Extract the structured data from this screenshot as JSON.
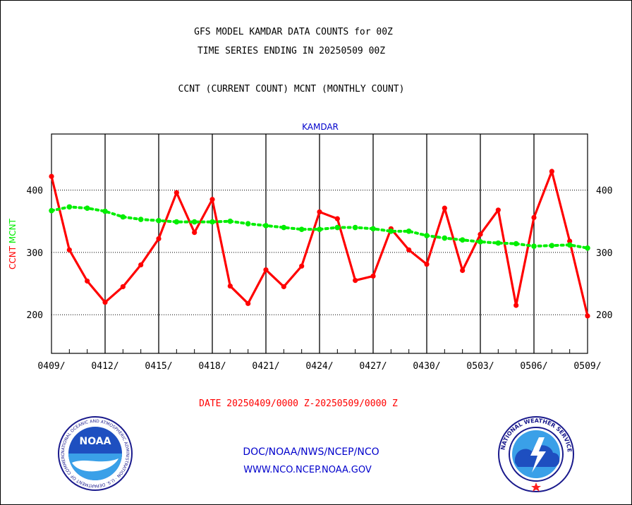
{
  "header": {
    "title_line1": "GFS MODEL KAMDAR DATA COUNTS for 00Z",
    "title_line2": "TIME SERIES ENDING IN 20250509 00Z",
    "subtitle": "CCNT (CURRENT COUNT) MCNT (MONTHLY COUNT)"
  },
  "footer": {
    "date_range": "DATE 20250409/0000 Z-20250509/0000 Z",
    "org_path": "DOC/NOAA/NWS/NCEP/NCO",
    "website": "WWW.NCO.NCEP.NOAA.GOV"
  },
  "logos": {
    "noaa_label": "NOAA",
    "noaa_ring_text": "NATIONAL OCEANIC AND ATMOSPHERIC ADMINISTRATION · U.S. DEPARTMENT OF COMMERCE ·",
    "nws_ring_text": "NATIONAL WEATHER SERVICE"
  },
  "colors": {
    "ccnt": "#ff0000",
    "mcnt": "#00ee00",
    "station": "#0000cc",
    "date_range": "#ff0000",
    "footer_text": "#0000cc"
  },
  "chart_data": {
    "type": "line",
    "title": "KAMDAR",
    "ylabel_series": [
      {
        "text": "CCNT",
        "color": "#ff0000"
      },
      {
        "text": "MCNT",
        "color": "#00ee00"
      }
    ],
    "xlim": [
      0,
      30
    ],
    "ylim": [
      138,
      490
    ],
    "yticks": [
      200,
      300,
      400
    ],
    "xticks": [
      {
        "x": 0,
        "label": "0409/"
      },
      {
        "x": 3,
        "label": "0412/"
      },
      {
        "x": 6,
        "label": "0415/"
      },
      {
        "x": 9,
        "label": "0418/"
      },
      {
        "x": 12,
        "label": "0421/"
      },
      {
        "x": 15,
        "label": "0424/"
      },
      {
        "x": 18,
        "label": "0427/"
      },
      {
        "x": 21,
        "label": "0430/"
      },
      {
        "x": 24,
        "label": "0503/"
      },
      {
        "x": 27,
        "label": "0506/"
      },
      {
        "x": 30,
        "label": "0509/"
      }
    ],
    "grid": true,
    "series": [
      {
        "name": "CCNT",
        "color": "#ff0000",
        "values": [
          422,
          304,
          254,
          220,
          245,
          280,
          322,
          396,
          332,
          385,
          246,
          218,
          272,
          245,
          278,
          365,
          354,
          255,
          262,
          338,
          304,
          281,
          371,
          271,
          329,
          368,
          215,
          356,
          430,
          318,
          198
        ]
      },
      {
        "name": "MCNT",
        "color": "#00ee00",
        "values": [
          367,
          373,
          371,
          366,
          357,
          353,
          351,
          349,
          349,
          349,
          350,
          346,
          343,
          340,
          337,
          337,
          340,
          340,
          338,
          334,
          334,
          327,
          323,
          320,
          317,
          315,
          314,
          310,
          311,
          312,
          307
        ]
      }
    ]
  }
}
